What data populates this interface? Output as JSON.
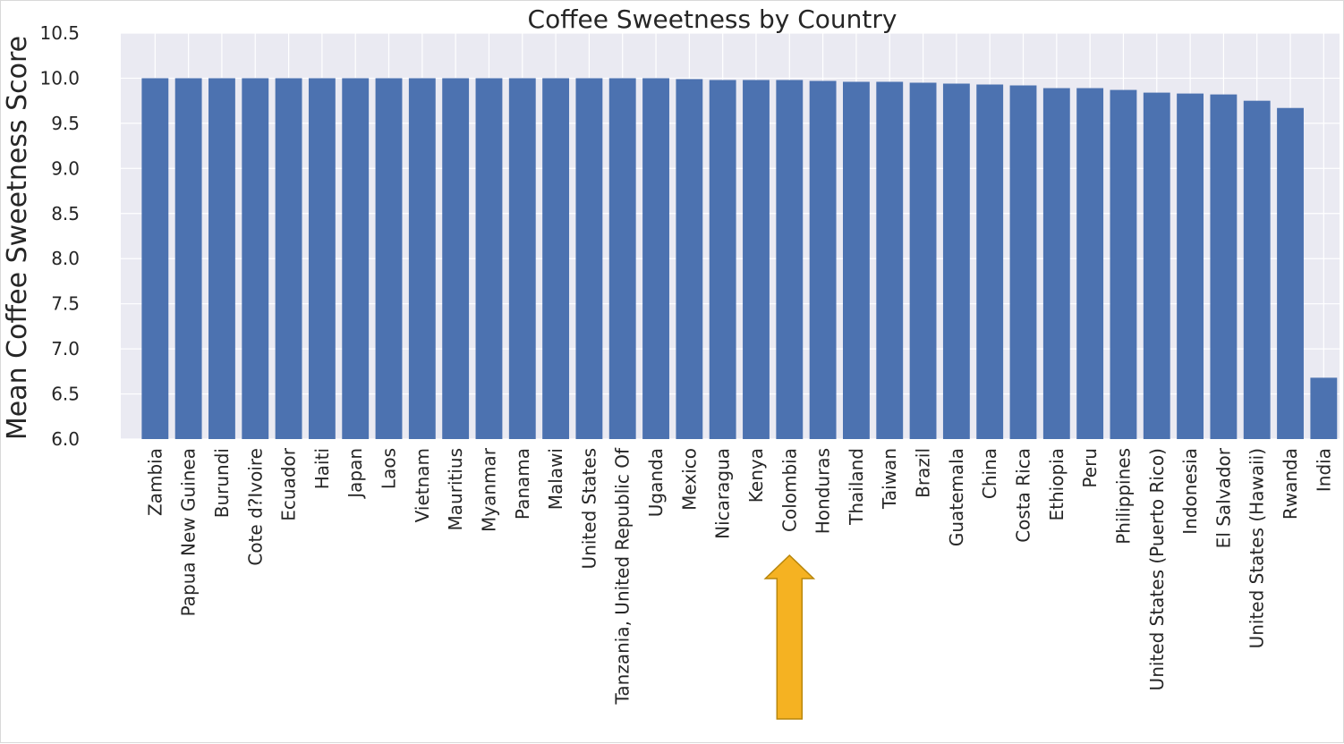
{
  "chart_data": {
    "type": "bar",
    "title": "Coffee Sweetness by Country",
    "xlabel": "",
    "ylabel": "Mean Coffee Sweetness Score",
    "ylim": [
      6.0,
      10.5
    ],
    "yticks": [
      "6.0",
      "6.5",
      "7.0",
      "7.5",
      "8.0",
      "8.5",
      "9.0",
      "9.5",
      "10.0",
      "10.5"
    ],
    "grid": true,
    "bar_color": "#4c72b0",
    "background_color": "#eaeaf2",
    "categories": [
      "Zambia",
      "Papua New Guinea",
      "Burundi",
      "Cote d?Ivoire",
      "Ecuador",
      "Haiti",
      "Japan",
      "Laos",
      "Vietnam",
      "Mauritius",
      "Myanmar",
      "Panama",
      "Malawi",
      "United States",
      "Tanzania, United Republic Of",
      "Uganda",
      "Mexico",
      "Nicaragua",
      "Kenya",
      "Colombia",
      "Honduras",
      "Thailand",
      "Taiwan",
      "Brazil",
      "Guatemala",
      "China",
      "Costa Rica",
      "Ethiopia",
      "Peru",
      "Philippines",
      "United States (Puerto Rico)",
      "Indonesia",
      "El Salvador",
      "United States (Hawaii)",
      "Rwanda",
      "India"
    ],
    "values": [
      10.0,
      10.0,
      10.0,
      10.0,
      10.0,
      10.0,
      10.0,
      10.0,
      10.0,
      10.0,
      10.0,
      10.0,
      10.0,
      10.0,
      10.0,
      10.0,
      9.99,
      9.98,
      9.98,
      9.98,
      9.97,
      9.96,
      9.96,
      9.95,
      9.94,
      9.93,
      9.92,
      9.89,
      9.89,
      9.87,
      9.84,
      9.83,
      9.82,
      9.75,
      9.67,
      6.68
    ],
    "annotation": {
      "type": "arrow",
      "target_category": "Colombia",
      "direction": "up",
      "color": "#f5b222",
      "stroke": "#b8860b"
    }
  }
}
